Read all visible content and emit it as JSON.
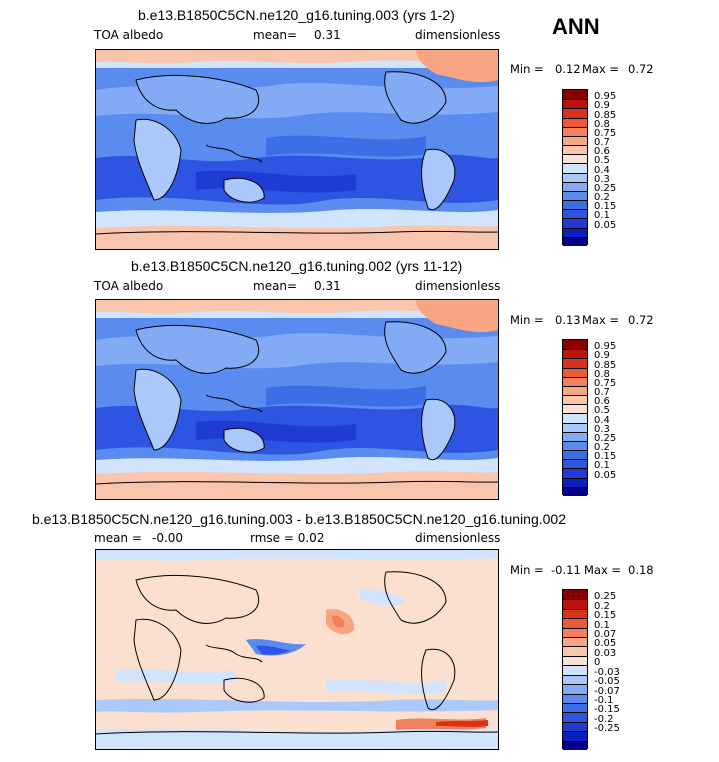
{
  "season": "ANN",
  "colors": {
    "ramp": [
      "#00008c",
      "#0a1fbe",
      "#1e3cd2",
      "#2d55e1",
      "#3c6ee6",
      "#5a8cf0",
      "#82aaf5",
      "#aac8fa",
      "#d2e3fc",
      "#fbe0cf",
      "#f9c5ad",
      "#f7a583",
      "#f2805a",
      "#ea5a35",
      "#d83218",
      "#b8140a",
      "#8a0000"
    ]
  },
  "chart_data": [
    {
      "type": "heatmap",
      "title": "b.e13.B1850C5CN.ne120_g16.tuning.003 (yrs 1-2)",
      "left_label": "TOA albedo",
      "mean_label": "mean=",
      "mean_value": "0.31",
      "units": "dimensionless",
      "min_label": "Min =",
      "min_value": "0.12",
      "max_label": "Max =",
      "max_value": "0.72",
      "min": 0.12,
      "max": 0.72,
      "levels": [
        "0.95",
        "0.9",
        "0.85",
        "0.8",
        "0.75",
        "0.7",
        "0.6",
        "0.5",
        "0.4",
        "0.3",
        "0.25",
        "0.2",
        "0.15",
        "0.1",
        "0.05"
      ]
    },
    {
      "type": "heatmap",
      "title": "b.e13.B1850C5CN.ne120_g16.tuning.002 (yrs 11-12)",
      "left_label": "TOA albedo",
      "mean_label": "mean=",
      "mean_value": "0.31",
      "units": "dimensionless",
      "min_label": "Min =",
      "min_value": "0.13",
      "max_label": "Max =",
      "max_value": "0.72",
      "min": 0.13,
      "max": 0.72,
      "levels": [
        "0.95",
        "0.9",
        "0.85",
        "0.8",
        "0.75",
        "0.7",
        "0.6",
        "0.5",
        "0.4",
        "0.3",
        "0.25",
        "0.2",
        "0.15",
        "0.1",
        "0.05"
      ]
    },
    {
      "type": "heatmap",
      "title": "b.e13.B1850C5CN.ne120_g16.tuning.003 - b.e13.B1850C5CN.ne120_g16.tuning.002",
      "left_label": "mean =",
      "mean_label": "-0.00",
      "mean_value": "rmse =  0.02",
      "units": "dimensionless",
      "min_label": "Min =",
      "min_value": "-0.11",
      "max_label": "Max =",
      "max_value": "0.18",
      "min": -0.11,
      "max": 0.18,
      "levels": [
        "0.25",
        "0.2",
        "0.15",
        "0.1",
        "0.07",
        "0.05",
        "0.03",
        "0",
        "-0.03",
        "-0.05",
        "-0.07",
        "-0.1",
        "-0.15",
        "-0.2",
        "-0.25"
      ]
    }
  ]
}
